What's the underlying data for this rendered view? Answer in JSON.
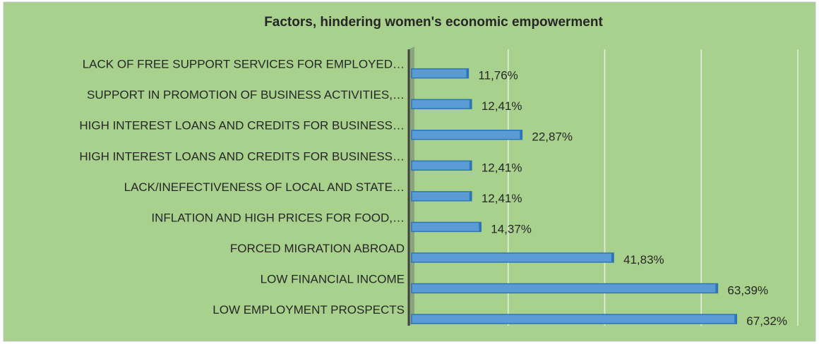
{
  "chart_data": {
    "type": "bar",
    "orientation": "horizontal",
    "title": "Factors, hindering women's economic empowerment",
    "categories": [
      "LACK OF FREE SUPPORT SERVICES FOR EMPLOYED…",
      "SUPPORT IN PROMOTION OF BUSINESS ACTIVITIES,…",
      "HIGH INTEREST LOANS AND CREDITS FOR BUSINESS…",
      "HIGH INTEREST LOANS AND CREDITS FOR BUSINESS…",
      "LACK/INEFECTIVENESS OF LOCAL AND STATE…",
      "INFLATION AND HIGH PRICES FOR FOOD,…",
      "FORCED MIGRATION ABROAD",
      "LOW FINANCIAL INCOME",
      "LOW EMPLOYMENT PROSPECTS"
    ],
    "values": [
      11.76,
      12.41,
      22.87,
      12.41,
      12.41,
      14.37,
      41.83,
      63.39,
      67.32
    ],
    "value_labels": [
      "11,76%",
      "12,41%",
      "22,87%",
      "12,41%",
      "12,41%",
      "14,37%",
      "41,83%",
      "63,39%",
      "67,32%"
    ],
    "color": "#5b9bd5",
    "xlim": [
      0,
      80
    ],
    "xticks": [
      0,
      20,
      40,
      60,
      80
    ],
    "grid": true
  }
}
